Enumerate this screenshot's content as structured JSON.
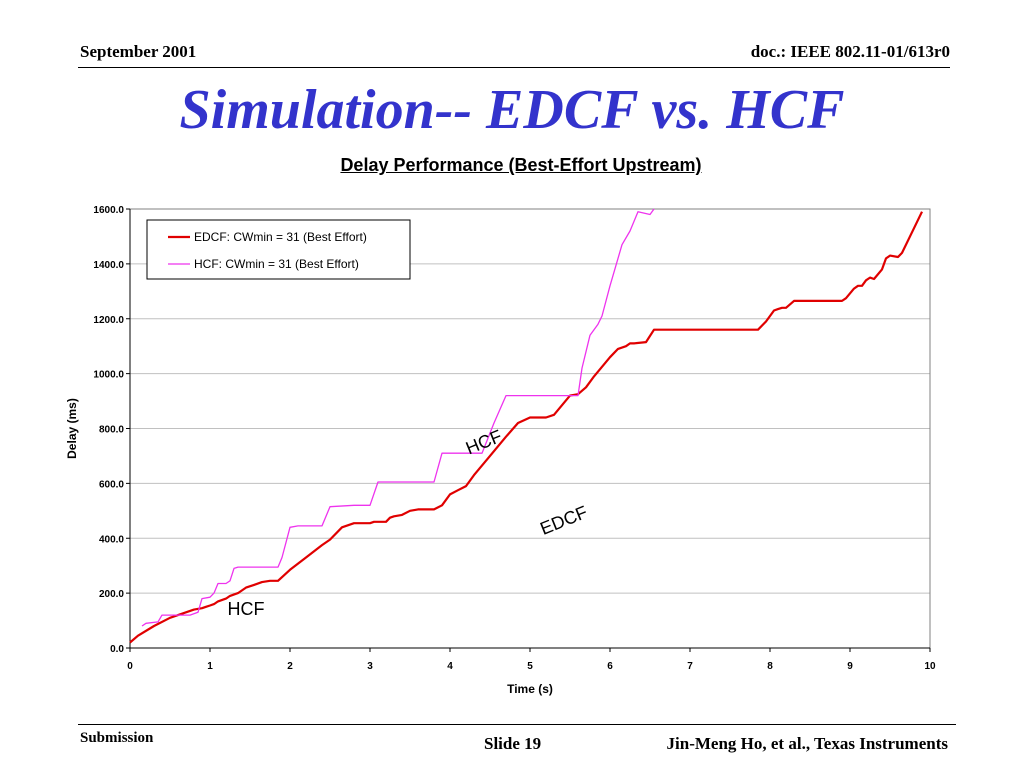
{
  "header": {
    "date": "September 2001",
    "doc": "doc.: IEEE 802.11-01/613r0"
  },
  "slide_title": "Simulation-- EDCF vs. HCF",
  "footer": {
    "submission": "Submission",
    "slide": "Slide 19",
    "author": "Jin-Meng Ho, et al., Texas Instruments"
  },
  "chart_data": {
    "type": "line",
    "title": "Delay Performance (Best-Effort Upstream)",
    "xlabel": "Time (s)",
    "ylabel": "Delay (ms)",
    "xlim": [
      0,
      10
    ],
    "ylim": [
      0,
      1600
    ],
    "xticks": [
      "0",
      "1",
      "2",
      "3",
      "4",
      "5",
      "6",
      "7",
      "8",
      "9",
      "10"
    ],
    "yticks": [
      "0.0",
      "200.0",
      "400.0",
      "600.0",
      "800.0",
      "1000.0",
      "1200.0",
      "1400.0",
      "1600.0"
    ],
    "grid": "horizontal",
    "legend_position": "top-left",
    "annotations": [
      {
        "text": "HCF",
        "x": 4.45,
        "y": 730
      },
      {
        "text": "EDCF",
        "x": 5.45,
        "y": 445
      },
      {
        "text": "HCF",
        "x": 1.45,
        "y": 120
      }
    ],
    "series": [
      {
        "name": "EDCF: CWmin = 31 (Best Effort)",
        "color": "#e00000",
        "x": [
          0,
          0.1,
          0.3,
          0.5,
          0.7,
          0.8,
          0.9,
          0.95,
          1.0,
          1.05,
          1.1,
          1.2,
          1.25,
          1.35,
          1.45,
          1.55,
          1.65,
          1.75,
          1.85,
          2.0,
          2.2,
          2.4,
          2.5,
          2.65,
          2.8,
          3.0,
          3.05,
          3.1,
          3.2,
          3.25,
          3.3,
          3.4,
          3.5,
          3.6,
          3.7,
          3.8,
          3.9,
          4.0,
          4.1,
          4.2,
          4.3,
          4.5,
          4.7,
          4.85,
          5.0,
          5.1,
          5.2,
          5.3,
          5.5,
          5.6,
          5.7,
          5.8,
          6.0,
          6.1,
          6.2,
          6.25,
          6.3,
          6.45,
          6.55,
          6.7,
          7.0,
          7.3,
          7.6,
          7.85,
          7.95,
          8.05,
          8.1,
          8.15,
          8.2,
          8.3,
          8.5,
          8.7,
          8.9,
          8.95,
          9.05,
          9.1,
          9.15,
          9.2,
          9.25,
          9.3,
          9.4,
          9.45,
          9.5,
          9.6,
          9.65,
          9.8,
          9.9
        ],
        "y": [
          20,
          45,
          80,
          110,
          130,
          140,
          145,
          150,
          155,
          160,
          170,
          180,
          190,
          200,
          220,
          230,
          240,
          245,
          245,
          285,
          330,
          375,
          395,
          440,
          455,
          455,
          460,
          460,
          460,
          475,
          480,
          485,
          500,
          505,
          505,
          505,
          520,
          560,
          575,
          590,
          630,
          700,
          770,
          820,
          840,
          840,
          840,
          850,
          920,
          925,
          950,
          990,
          1060,
          1090,
          1100,
          1110,
          1110,
          1115,
          1160,
          1160,
          1160,
          1160,
          1160,
          1160,
          1190,
          1230,
          1235,
          1240,
          1240,
          1265,
          1265,
          1265,
          1265,
          1275,
          1310,
          1320,
          1320,
          1340,
          1350,
          1345,
          1380,
          1420,
          1430,
          1425,
          1440,
          1530,
          1590
        ]
      },
      {
        "name": "HCF: CWmin = 31 (Best Effort)",
        "color": "#ee33ee",
        "x": [
          0.15,
          0.2,
          0.35,
          0.4,
          0.6,
          0.75,
          0.85,
          0.9,
          1.0,
          1.05,
          1.1,
          1.2,
          1.25,
          1.3,
          1.35,
          1.6,
          1.75,
          1.85,
          1.9,
          2.0,
          2.1,
          2.4,
          2.5,
          2.8,
          3.0,
          3.1,
          3.5,
          3.8,
          3.9,
          4.4,
          4.55,
          4.7,
          4.9,
          5.2,
          5.6,
          5.65,
          5.75,
          5.85,
          5.9,
          6.0,
          6.1,
          6.15,
          6.25,
          6.35,
          6.5,
          6.55
        ],
        "y": [
          80,
          90,
          95,
          120,
          120,
          120,
          130,
          180,
          185,
          200,
          235,
          235,
          245,
          290,
          295,
          295,
          295,
          295,
          330,
          440,
          445,
          445,
          515,
          520,
          520,
          605,
          605,
          605,
          710,
          710,
          820,
          920,
          920,
          920,
          920,
          1020,
          1140,
          1180,
          1210,
          1320,
          1420,
          1470,
          1520,
          1590,
          1580,
          1600
        ]
      }
    ]
  }
}
